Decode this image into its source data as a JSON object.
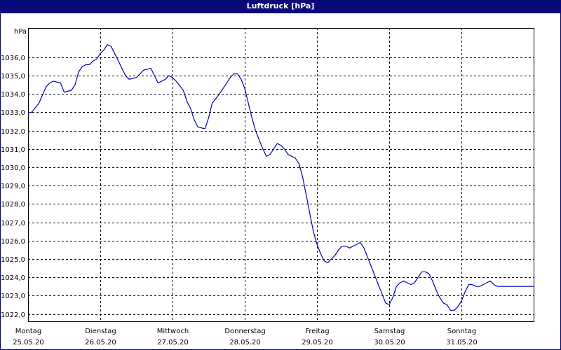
{
  "window": {
    "title": "Luftdruck [hPa]"
  },
  "chart_data": {
    "type": "line",
    "title": "Luftdruck [hPa]",
    "ylabel": "hPa",
    "xlabel": "",
    "grid": true,
    "ylim": [
      1021.6,
      1037.6
    ],
    "xlim": [
      0,
      7
    ],
    "y_ticks": [
      "1022,0",
      "1023,0",
      "1024,0",
      "1025,0",
      "1026,0",
      "1027,0",
      "1028,0",
      "1029,0",
      "1030,0",
      "1031,0",
      "1032,0",
      "1033,0",
      "1034,0",
      "1035,0",
      "1036,0"
    ],
    "x_ticks": [
      {
        "day": "Montag",
        "date": "25.05.20"
      },
      {
        "day": "Dienstag",
        "date": "26.05.20"
      },
      {
        "day": "Mittwoch",
        "date": "27.05.20"
      },
      {
        "day": "Donnerstag",
        "date": "28.05.20"
      },
      {
        "day": "Freitag",
        "date": "29.05.20"
      },
      {
        "day": "Samstag",
        "date": "30.05.20"
      },
      {
        "day": "Sonntag",
        "date": "31.05.20"
      }
    ],
    "series": [
      {
        "color": "#0000b0",
        "x": [
          0,
          0.05,
          0.15,
          0.25,
          0.3,
          0.35,
          0.45,
          0.5,
          0.6,
          0.65,
          0.7,
          0.75,
          0.8,
          0.85,
          0.9,
          0.95,
          1.0,
          1.05,
          1.1,
          1.15,
          1.2,
          1.25,
          1.3,
          1.35,
          1.4,
          1.5,
          1.6,
          1.7,
          1.75,
          1.8,
          1.9,
          1.95,
          2.0,
          2.05,
          2.15,
          2.2,
          2.25,
          2.3,
          2.35,
          2.45,
          2.5,
          2.55,
          2.65,
          2.7,
          2.75,
          2.8,
          2.85,
          2.9,
          2.95,
          3.0,
          3.05,
          3.1,
          3.15,
          3.2,
          3.25,
          3.3,
          3.35,
          3.4,
          3.45,
          3.5,
          3.55,
          3.6,
          3.65,
          3.7,
          3.75,
          3.8,
          3.85,
          3.9,
          3.95,
          4.0,
          4.05,
          4.1,
          4.15,
          4.2,
          4.25,
          4.3,
          4.35,
          4.4,
          4.45,
          4.5,
          4.55,
          4.6,
          4.65,
          4.7,
          4.75,
          4.8,
          4.85,
          4.9,
          4.95,
          5.0,
          5.05,
          5.1,
          5.15,
          5.2,
          5.3,
          5.35,
          5.4,
          5.45,
          5.5,
          5.55,
          5.6,
          5.65,
          5.7,
          5.75,
          5.8,
          5.85,
          5.9,
          5.95,
          6.0,
          6.05,
          6.1,
          6.15,
          6.2,
          6.25,
          6.3,
          6.35,
          6.4,
          6.45,
          6.5,
          6.55,
          6.6,
          6.65,
          6.7,
          6.75,
          6.8,
          6.85,
          6.9,
          6.95,
          7.0
        ],
        "values": [
          1033.0,
          1033.0,
          1033.5,
          1034.4,
          1034.6,
          1034.7,
          1034.6,
          1034.1,
          1034.2,
          1034.5,
          1035.2,
          1035.5,
          1035.6,
          1035.6,
          1035.8,
          1035.9,
          1036.2,
          1036.4,
          1036.7,
          1036.6,
          1036.2,
          1035.8,
          1035.4,
          1035.0,
          1034.8,
          1034.9,
          1035.3,
          1035.4,
          1035.0,
          1034.6,
          1034.8,
          1035.0,
          1034.9,
          1034.7,
          1034.2,
          1033.6,
          1033.2,
          1032.6,
          1032.2,
          1032.1,
          1032.7,
          1033.5,
          1034.0,
          1034.3,
          1034.6,
          1034.9,
          1035.1,
          1035.1,
          1034.8,
          1034.3,
          1033.5,
          1032.7,
          1032.0,
          1031.5,
          1031.0,
          1030.6,
          1030.7,
          1031.0,
          1031.3,
          1031.2,
          1031.0,
          1030.7,
          1030.6,
          1030.5,
          1030.2,
          1029.5,
          1028.5,
          1027.5,
          1026.5,
          1025.8,
          1025.3,
          1024.9,
          1024.8,
          1025.0,
          1025.2,
          1025.5,
          1025.7,
          1025.7,
          1025.6,
          1025.7,
          1025.8,
          1025.9,
          1025.6,
          1025.1,
          1024.6,
          1024.1,
          1023.6,
          1023.1,
          1022.6,
          1022.5,
          1022.9,
          1023.5,
          1023.7,
          1023.8,
          1023.6,
          1023.7,
          1024.0,
          1024.3,
          1024.3,
          1024.2,
          1023.8,
          1023.3,
          1022.9,
          1022.6,
          1022.5,
          1022.2,
          1022.2,
          1022.4,
          1022.7,
          1023.2,
          1023.6,
          1023.6,
          1023.5,
          1023.5,
          1023.6,
          1023.7,
          1023.8,
          1023.6,
          1023.5,
          1023.5,
          1023.5,
          1023.5,
          1023.5,
          1023.5,
          1023.5,
          1023.5,
          1023.5,
          1023.5,
          1023.5
        ]
      }
    ]
  }
}
